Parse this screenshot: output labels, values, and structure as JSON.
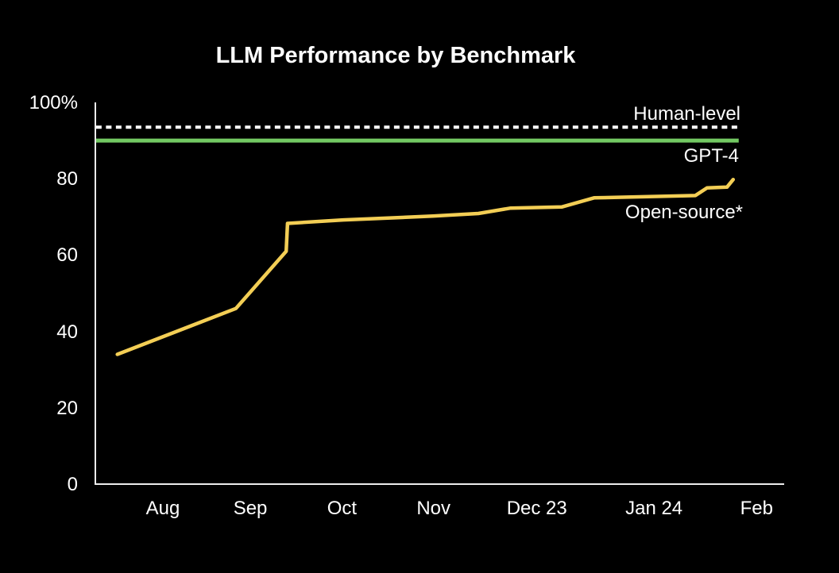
{
  "title": "LLM Performance by Benchmark",
  "colors": {
    "background": "#000000",
    "axis": "#EDEDED",
    "text": "#FFFFFF",
    "human_level": "#FFFFFF",
    "gpt4": "#73C963",
    "open_source": "#F3CE55"
  },
  "chart_data": {
    "type": "line",
    "title": "LLM Performance by Benchmark",
    "xlabel": "",
    "ylabel": "",
    "ylim": [
      0,
      100
    ],
    "y_unit": "percent",
    "grid": false,
    "legend_position": "inline-right",
    "y_ticks": [
      {
        "label": "100%",
        "value": 100
      },
      {
        "label": "80",
        "value": 80
      },
      {
        "label": "60",
        "value": 60
      },
      {
        "label": "40",
        "value": 40
      },
      {
        "label": "20",
        "value": 20
      },
      {
        "label": "0",
        "value": 0
      }
    ],
    "x_ticks": [
      {
        "label": "Aug",
        "pos": 0.098
      },
      {
        "label": "Sep",
        "pos": 0.225
      },
      {
        "label": "Oct",
        "pos": 0.358
      },
      {
        "label": "Nov",
        "pos": 0.491
      },
      {
        "label": "Dec 23",
        "pos": 0.641
      },
      {
        "label": "Jan 24",
        "pos": 0.811
      },
      {
        "label": "Feb",
        "pos": 0.96
      }
    ],
    "reference_lines": [
      {
        "id": "human-level",
        "label": "Human-level",
        "value": 93.5,
        "style": "dotted",
        "color": "#FFFFFF",
        "start": 0.001,
        "end": 0.932
      },
      {
        "id": "gpt-4",
        "label": "GPT-4",
        "value": 90,
        "style": "solid",
        "color": "#73C963",
        "start": 0.001,
        "end": 0.934
      }
    ],
    "series": [
      {
        "id": "open-source",
        "label": "Open-source*",
        "color": "#F3CE55",
        "points": [
          {
            "x": 0.032,
            "y": 34
          },
          {
            "x": 0.204,
            "y": 46
          },
          {
            "x": 0.277,
            "y": 61
          },
          {
            "x": 0.279,
            "y": 68.3
          },
          {
            "x": 0.36,
            "y": 69.2
          },
          {
            "x": 0.49,
            "y": 70.2
          },
          {
            "x": 0.556,
            "y": 70.9
          },
          {
            "x": 0.603,
            "y": 72.3
          },
          {
            "x": 0.677,
            "y": 72.6
          },
          {
            "x": 0.724,
            "y": 75.0
          },
          {
            "x": 0.871,
            "y": 75.6
          },
          {
            "x": 0.888,
            "y": 77.6
          },
          {
            "x": 0.917,
            "y": 77.8
          },
          {
            "x": 0.926,
            "y": 79.8
          }
        ]
      }
    ]
  }
}
